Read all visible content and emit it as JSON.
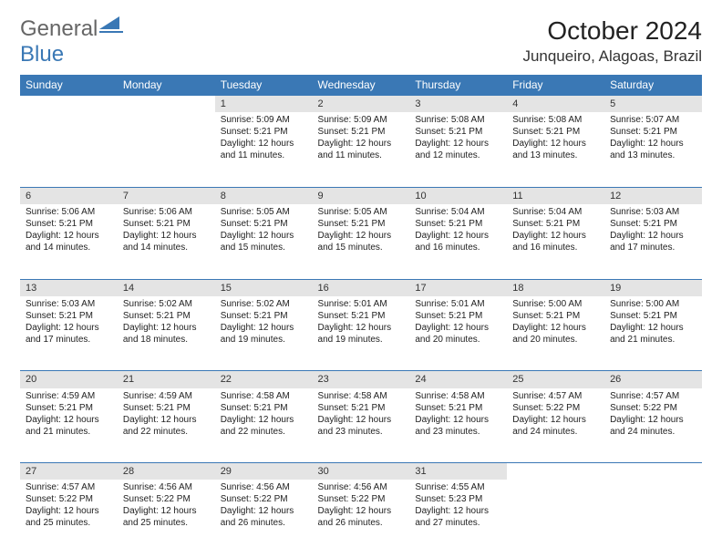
{
  "logo": {
    "general": "General",
    "blue": "Blue"
  },
  "title": "October 2024",
  "location": "Junqueiro, Alagoas, Brazil",
  "colors": {
    "headerBg": "#3a78b5",
    "headerText": "#ffffff",
    "dayBg": "#e4e4e4",
    "borderTop": "#3a78b5",
    "bodyText": "#222222",
    "pageBg": "#ffffff"
  },
  "typography": {
    "title_fontsize": 28,
    "location_fontsize": 17,
    "header_fontsize": 12,
    "cell_fontsize": 10
  },
  "weekdays": [
    "Sunday",
    "Monday",
    "Tuesday",
    "Wednesday",
    "Thursday",
    "Friday",
    "Saturday"
  ],
  "weeks": [
    [
      null,
      null,
      {
        "n": "1",
        "l": [
          "Sunrise: 5:09 AM",
          "Sunset: 5:21 PM",
          "Daylight: 12 hours",
          "and 11 minutes."
        ]
      },
      {
        "n": "2",
        "l": [
          "Sunrise: 5:09 AM",
          "Sunset: 5:21 PM",
          "Daylight: 12 hours",
          "and 11 minutes."
        ]
      },
      {
        "n": "3",
        "l": [
          "Sunrise: 5:08 AM",
          "Sunset: 5:21 PM",
          "Daylight: 12 hours",
          "and 12 minutes."
        ]
      },
      {
        "n": "4",
        "l": [
          "Sunrise: 5:08 AM",
          "Sunset: 5:21 PM",
          "Daylight: 12 hours",
          "and 13 minutes."
        ]
      },
      {
        "n": "5",
        "l": [
          "Sunrise: 5:07 AM",
          "Sunset: 5:21 PM",
          "Daylight: 12 hours",
          "and 13 minutes."
        ]
      }
    ],
    [
      {
        "n": "6",
        "l": [
          "Sunrise: 5:06 AM",
          "Sunset: 5:21 PM",
          "Daylight: 12 hours",
          "and 14 minutes."
        ]
      },
      {
        "n": "7",
        "l": [
          "Sunrise: 5:06 AM",
          "Sunset: 5:21 PM",
          "Daylight: 12 hours",
          "and 14 minutes."
        ]
      },
      {
        "n": "8",
        "l": [
          "Sunrise: 5:05 AM",
          "Sunset: 5:21 PM",
          "Daylight: 12 hours",
          "and 15 minutes."
        ]
      },
      {
        "n": "9",
        "l": [
          "Sunrise: 5:05 AM",
          "Sunset: 5:21 PM",
          "Daylight: 12 hours",
          "and 15 minutes."
        ]
      },
      {
        "n": "10",
        "l": [
          "Sunrise: 5:04 AM",
          "Sunset: 5:21 PM",
          "Daylight: 12 hours",
          "and 16 minutes."
        ]
      },
      {
        "n": "11",
        "l": [
          "Sunrise: 5:04 AM",
          "Sunset: 5:21 PM",
          "Daylight: 12 hours",
          "and 16 minutes."
        ]
      },
      {
        "n": "12",
        "l": [
          "Sunrise: 5:03 AM",
          "Sunset: 5:21 PM",
          "Daylight: 12 hours",
          "and 17 minutes."
        ]
      }
    ],
    [
      {
        "n": "13",
        "l": [
          "Sunrise: 5:03 AM",
          "Sunset: 5:21 PM",
          "Daylight: 12 hours",
          "and 17 minutes."
        ]
      },
      {
        "n": "14",
        "l": [
          "Sunrise: 5:02 AM",
          "Sunset: 5:21 PM",
          "Daylight: 12 hours",
          "and 18 minutes."
        ]
      },
      {
        "n": "15",
        "l": [
          "Sunrise: 5:02 AM",
          "Sunset: 5:21 PM",
          "Daylight: 12 hours",
          "and 19 minutes."
        ]
      },
      {
        "n": "16",
        "l": [
          "Sunrise: 5:01 AM",
          "Sunset: 5:21 PM",
          "Daylight: 12 hours",
          "and 19 minutes."
        ]
      },
      {
        "n": "17",
        "l": [
          "Sunrise: 5:01 AM",
          "Sunset: 5:21 PM",
          "Daylight: 12 hours",
          "and 20 minutes."
        ]
      },
      {
        "n": "18",
        "l": [
          "Sunrise: 5:00 AM",
          "Sunset: 5:21 PM",
          "Daylight: 12 hours",
          "and 20 minutes."
        ]
      },
      {
        "n": "19",
        "l": [
          "Sunrise: 5:00 AM",
          "Sunset: 5:21 PM",
          "Daylight: 12 hours",
          "and 21 minutes."
        ]
      }
    ],
    [
      {
        "n": "20",
        "l": [
          "Sunrise: 4:59 AM",
          "Sunset: 5:21 PM",
          "Daylight: 12 hours",
          "and 21 minutes."
        ]
      },
      {
        "n": "21",
        "l": [
          "Sunrise: 4:59 AM",
          "Sunset: 5:21 PM",
          "Daylight: 12 hours",
          "and 22 minutes."
        ]
      },
      {
        "n": "22",
        "l": [
          "Sunrise: 4:58 AM",
          "Sunset: 5:21 PM",
          "Daylight: 12 hours",
          "and 22 minutes."
        ]
      },
      {
        "n": "23",
        "l": [
          "Sunrise: 4:58 AM",
          "Sunset: 5:21 PM",
          "Daylight: 12 hours",
          "and 23 minutes."
        ]
      },
      {
        "n": "24",
        "l": [
          "Sunrise: 4:58 AM",
          "Sunset: 5:21 PM",
          "Daylight: 12 hours",
          "and 23 minutes."
        ]
      },
      {
        "n": "25",
        "l": [
          "Sunrise: 4:57 AM",
          "Sunset: 5:22 PM",
          "Daylight: 12 hours",
          "and 24 minutes."
        ]
      },
      {
        "n": "26",
        "l": [
          "Sunrise: 4:57 AM",
          "Sunset: 5:22 PM",
          "Daylight: 12 hours",
          "and 24 minutes."
        ]
      }
    ],
    [
      {
        "n": "27",
        "l": [
          "Sunrise: 4:57 AM",
          "Sunset: 5:22 PM",
          "Daylight: 12 hours",
          "and 25 minutes."
        ]
      },
      {
        "n": "28",
        "l": [
          "Sunrise: 4:56 AM",
          "Sunset: 5:22 PM",
          "Daylight: 12 hours",
          "and 25 minutes."
        ]
      },
      {
        "n": "29",
        "l": [
          "Sunrise: 4:56 AM",
          "Sunset: 5:22 PM",
          "Daylight: 12 hours",
          "and 26 minutes."
        ]
      },
      {
        "n": "30",
        "l": [
          "Sunrise: 4:56 AM",
          "Sunset: 5:22 PM",
          "Daylight: 12 hours",
          "and 26 minutes."
        ]
      },
      {
        "n": "31",
        "l": [
          "Sunrise: 4:55 AM",
          "Sunset: 5:23 PM",
          "Daylight: 12 hours",
          "and 27 minutes."
        ]
      },
      null,
      null
    ]
  ]
}
